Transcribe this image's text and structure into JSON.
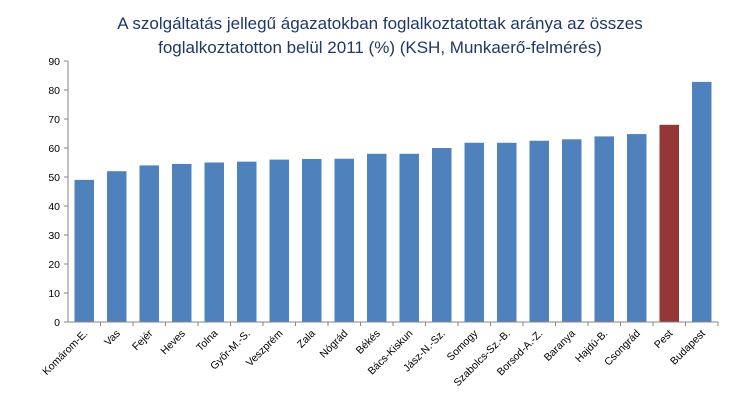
{
  "chart_data": {
    "type": "bar",
    "title": "A szolgáltatás jellegű ágazatokban foglalkoztatottak aránya az összes foglalkoztatotton belül 2011 (%) (KSH, Munkaerő-felmérés)",
    "title_lines": [
      "A szolgáltatás jellegű ágazatokban foglalkoztatottak aránya az összes",
      "foglalkoztatotton belül 2011 (%) (KSH, Munkaerő-felmérés)"
    ],
    "xlabel": "",
    "ylabel": "",
    "ylim": [
      0,
      90
    ],
    "yticks": [
      0,
      10,
      20,
      30,
      40,
      50,
      60,
      70,
      80,
      90
    ],
    "grid": false,
    "categories": [
      "Komárom-E.",
      "Vas",
      "Fejér",
      "Heves",
      "Tolna",
      "Győr-M.-S.",
      "Veszprém",
      "Zala",
      "Nógrád",
      "Békés",
      "Bács-Kiskun",
      "Jász-N.-Sz.",
      "Somogy",
      "Szabolcs-Sz.-B.",
      "Borsod-A.-Z.",
      "Baranya",
      "Hajdú-B.",
      "Csongrád",
      "Pest",
      "Budapest"
    ],
    "values": [
      49,
      52,
      54,
      54.5,
      55,
      55.3,
      56,
      56.2,
      56.3,
      58,
      58,
      60,
      61.8,
      61.8,
      62.5,
      63,
      64,
      64.8,
      68,
      82.8
    ],
    "colors": {
      "default": "#4f81bd",
      "highlight": "#953735",
      "highlighted_category": "Pest"
    }
  }
}
